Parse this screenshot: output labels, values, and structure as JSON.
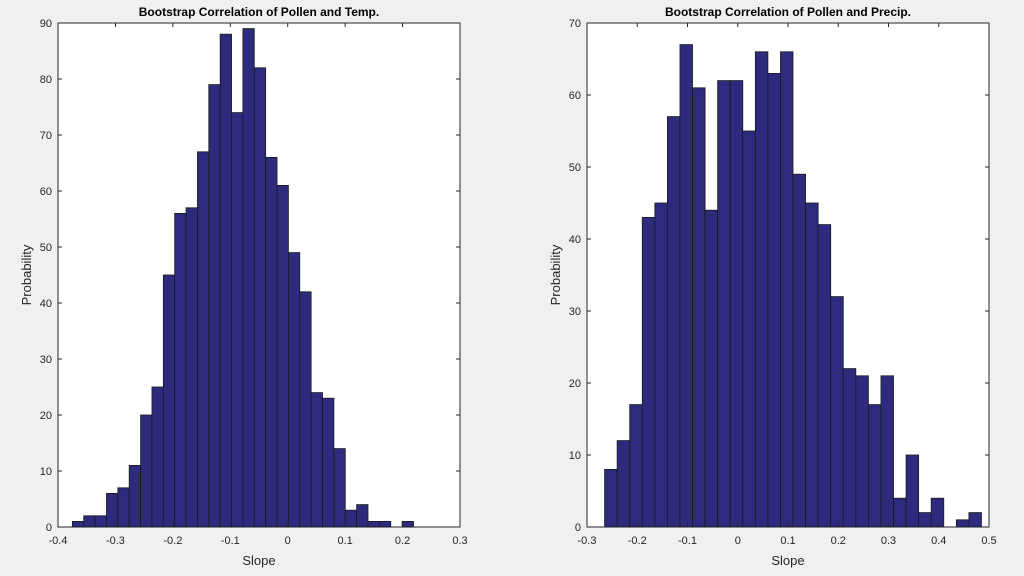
{
  "chart_data": [
    {
      "type": "bar",
      "title": "Bootstrap Correlation of Pollen and Temp.",
      "xlabel": "Slope",
      "ylabel": "Probability",
      "xlim": [
        -0.4,
        0.3
      ],
      "ylim": [
        0,
        90
      ],
      "xticks": [
        -0.4,
        -0.3,
        -0.2,
        -0.1,
        0,
        0.1,
        0.2,
        0.3
      ],
      "xtick_labels": [
        "-0.4",
        "-0.3",
        "-0.2",
        "-0.1",
        "0",
        "0.1",
        "0.2",
        "0.3"
      ],
      "yticks": [
        0,
        10,
        20,
        30,
        40,
        50,
        60,
        70,
        80,
        90
      ],
      "ytick_labels": [
        "0",
        "10",
        "20",
        "30",
        "40",
        "50",
        "60",
        "70",
        "80",
        "90"
      ],
      "bin_start": -0.375,
      "bin_width": 0.0198,
      "values": [
        1,
        2,
        2,
        6,
        7,
        11,
        20,
        25,
        45,
        56,
        57,
        67,
        79,
        88,
        74,
        89,
        82,
        66,
        61,
        49,
        42,
        24,
        23,
        14,
        3,
        4,
        1,
        1,
        0,
        1
      ],
      "bar_color": "#2e2a7e",
      "grid": false
    },
    {
      "type": "bar",
      "title": "Bootstrap Correlation of Pollen and Precip.",
      "xlabel": "Slope",
      "ylabel": "Probability",
      "xlim": [
        -0.3,
        0.5
      ],
      "ylim": [
        0,
        70
      ],
      "xticks": [
        -0.3,
        -0.2,
        -0.1,
        0,
        0.1,
        0.2,
        0.3,
        0.4,
        0.5
      ],
      "xtick_labels": [
        "-0.3",
        "-0.2",
        "-0.1",
        "0",
        "0.1",
        "0.2",
        "0.3",
        "0.4",
        "0.5"
      ],
      "yticks": [
        0,
        10,
        20,
        30,
        40,
        50,
        60,
        70
      ],
      "ytick_labels": [
        "0",
        "10",
        "20",
        "30",
        "40",
        "50",
        "60",
        "70"
      ],
      "bin_start": -0.265,
      "bin_width": 0.025,
      "values": [
        8,
        12,
        17,
        43,
        45,
        57,
        67,
        61,
        44,
        62,
        62,
        55,
        66,
        63,
        66,
        49,
        45,
        42,
        32,
        22,
        21,
        17,
        21,
        4,
        10,
        2,
        4,
        0,
        1,
        2
      ],
      "bar_color": "#2e2a7e",
      "grid": false
    }
  ]
}
